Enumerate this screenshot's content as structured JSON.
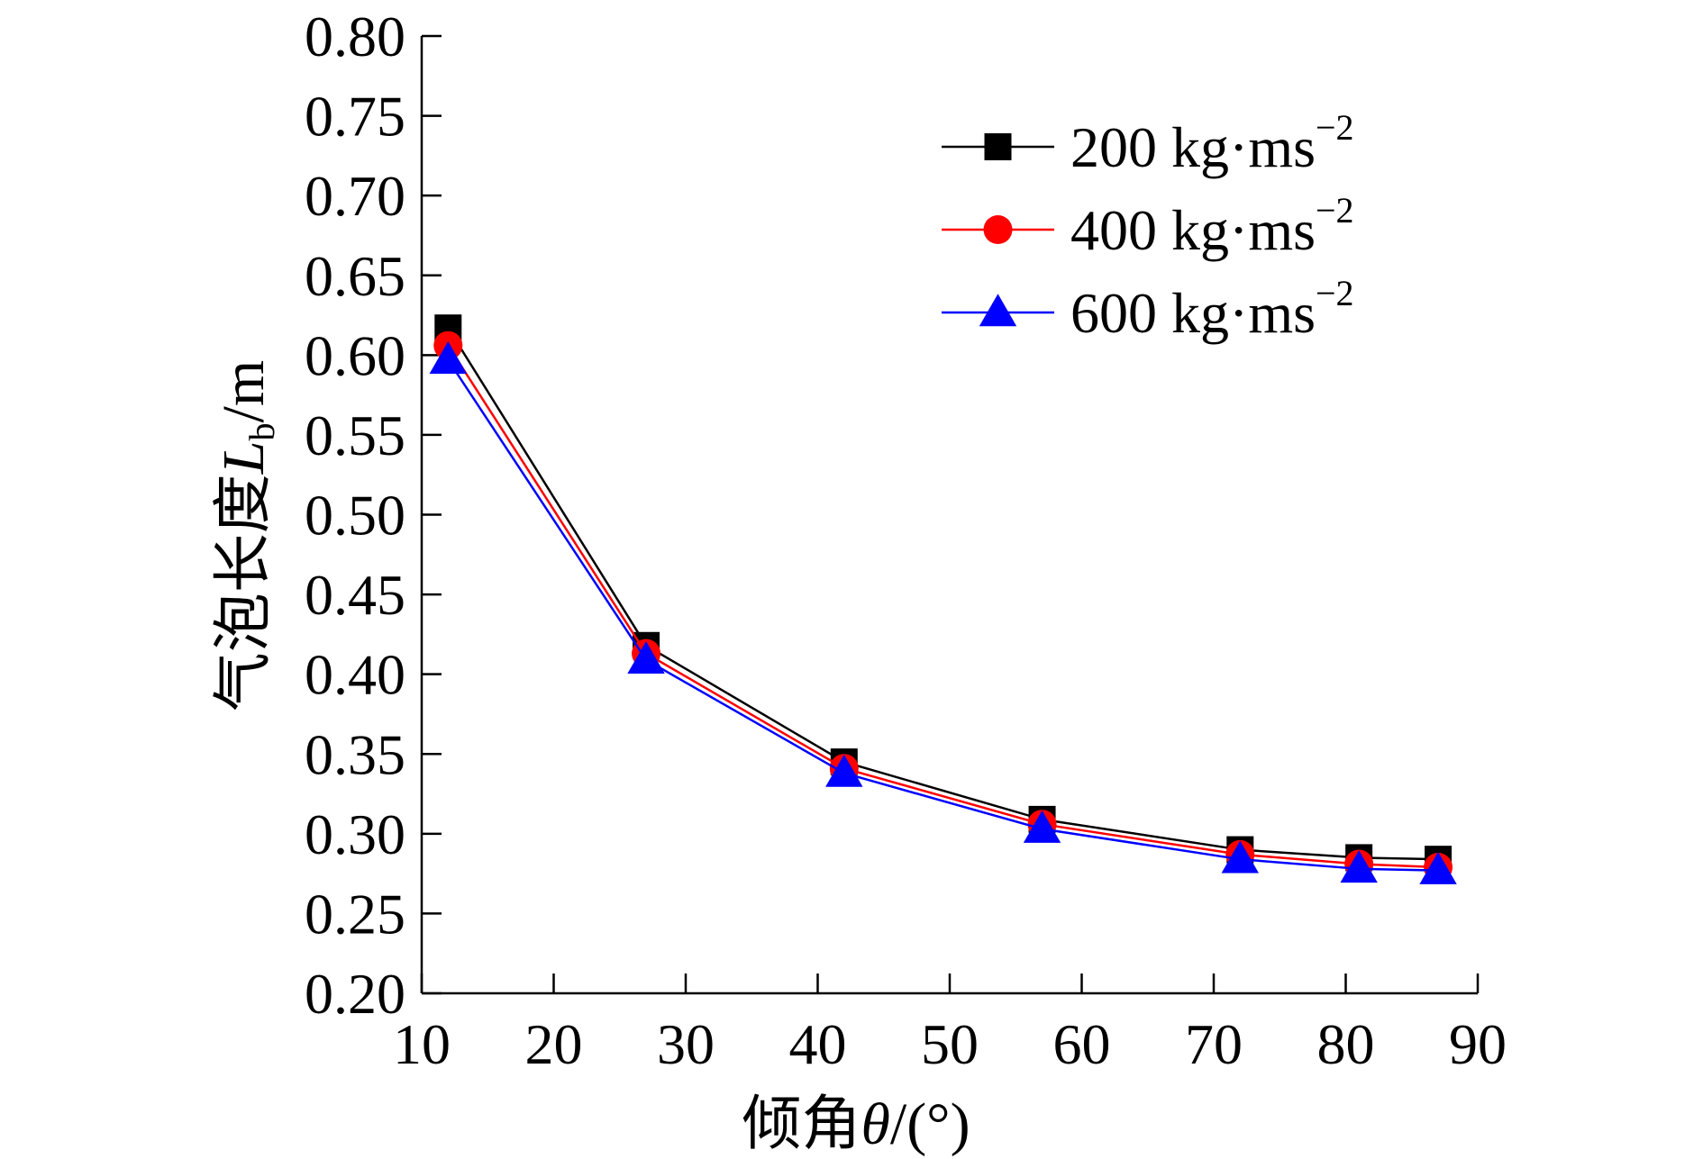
{
  "chart_data": {
    "type": "line",
    "xlabel": "倾角θ/(°)",
    "xlabel_parts": {
      "prefix": "倾角",
      "symbol": "θ",
      "suffix": "/(°)"
    },
    "ylabel": "气泡长度Lb/m",
    "ylabel_parts": {
      "prefix": "气泡长度",
      "symbol": "L",
      "subscript": "b",
      "suffix": "/m"
    },
    "xlim": [
      10,
      90
    ],
    "ylim": [
      0.2,
      0.8
    ],
    "x_ticks": [
      "10",
      "20",
      "30",
      "40",
      "50",
      "60",
      "70",
      "80",
      "90"
    ],
    "y_ticks": [
      "0.20",
      "0.25",
      "0.30",
      "0.35",
      "0.40",
      "0.45",
      "0.50",
      "0.55",
      "0.60",
      "0.65",
      "0.70",
      "0.75",
      "0.80"
    ],
    "legend_position": "top-right",
    "x": [
      12,
      27,
      42,
      57,
      72,
      81,
      87
    ],
    "series": [
      {
        "name": "200 kg·ms−2",
        "label_main": "200 kg·ms",
        "label_sup": "−2",
        "color": "#000000",
        "marker": "square",
        "values": [
          0.617,
          0.418,
          0.345,
          0.309,
          0.29,
          0.285,
          0.284
        ]
      },
      {
        "name": "400 kg·ms−2",
        "label_main": "400 kg·ms",
        "label_sup": "−2",
        "color": "#ff0000",
        "marker": "circle",
        "values": [
          0.606,
          0.413,
          0.341,
          0.306,
          0.287,
          0.281,
          0.279
        ]
      },
      {
        "name": "600 kg·ms−2",
        "label_main": "600 kg·ms",
        "label_sup": "−2",
        "color": "#0000ff",
        "marker": "triangle",
        "values": [
          0.597,
          0.409,
          0.338,
          0.303,
          0.284,
          0.278,
          0.277
        ]
      }
    ]
  }
}
